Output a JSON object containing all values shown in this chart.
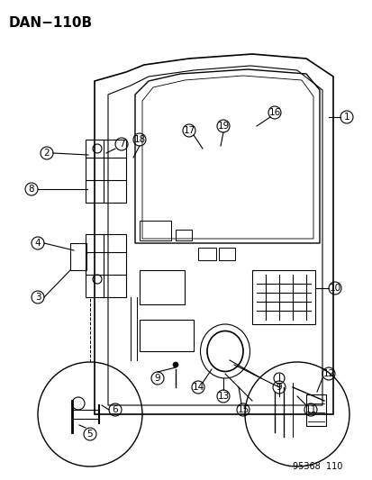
{
  "title": "DAN−110B",
  "footer": "95368  110",
  "bg_color": "#ffffff",
  "line_color": "#000000",
  "label_fontsize": 7.5,
  "title_fontsize": 11,
  "footer_fontsize": 7,
  "numbered_labels": [
    1,
    2,
    3,
    4,
    5,
    6,
    7,
    8,
    9,
    10,
    11,
    12,
    13,
    14,
    15,
    16,
    17,
    18,
    19
  ]
}
